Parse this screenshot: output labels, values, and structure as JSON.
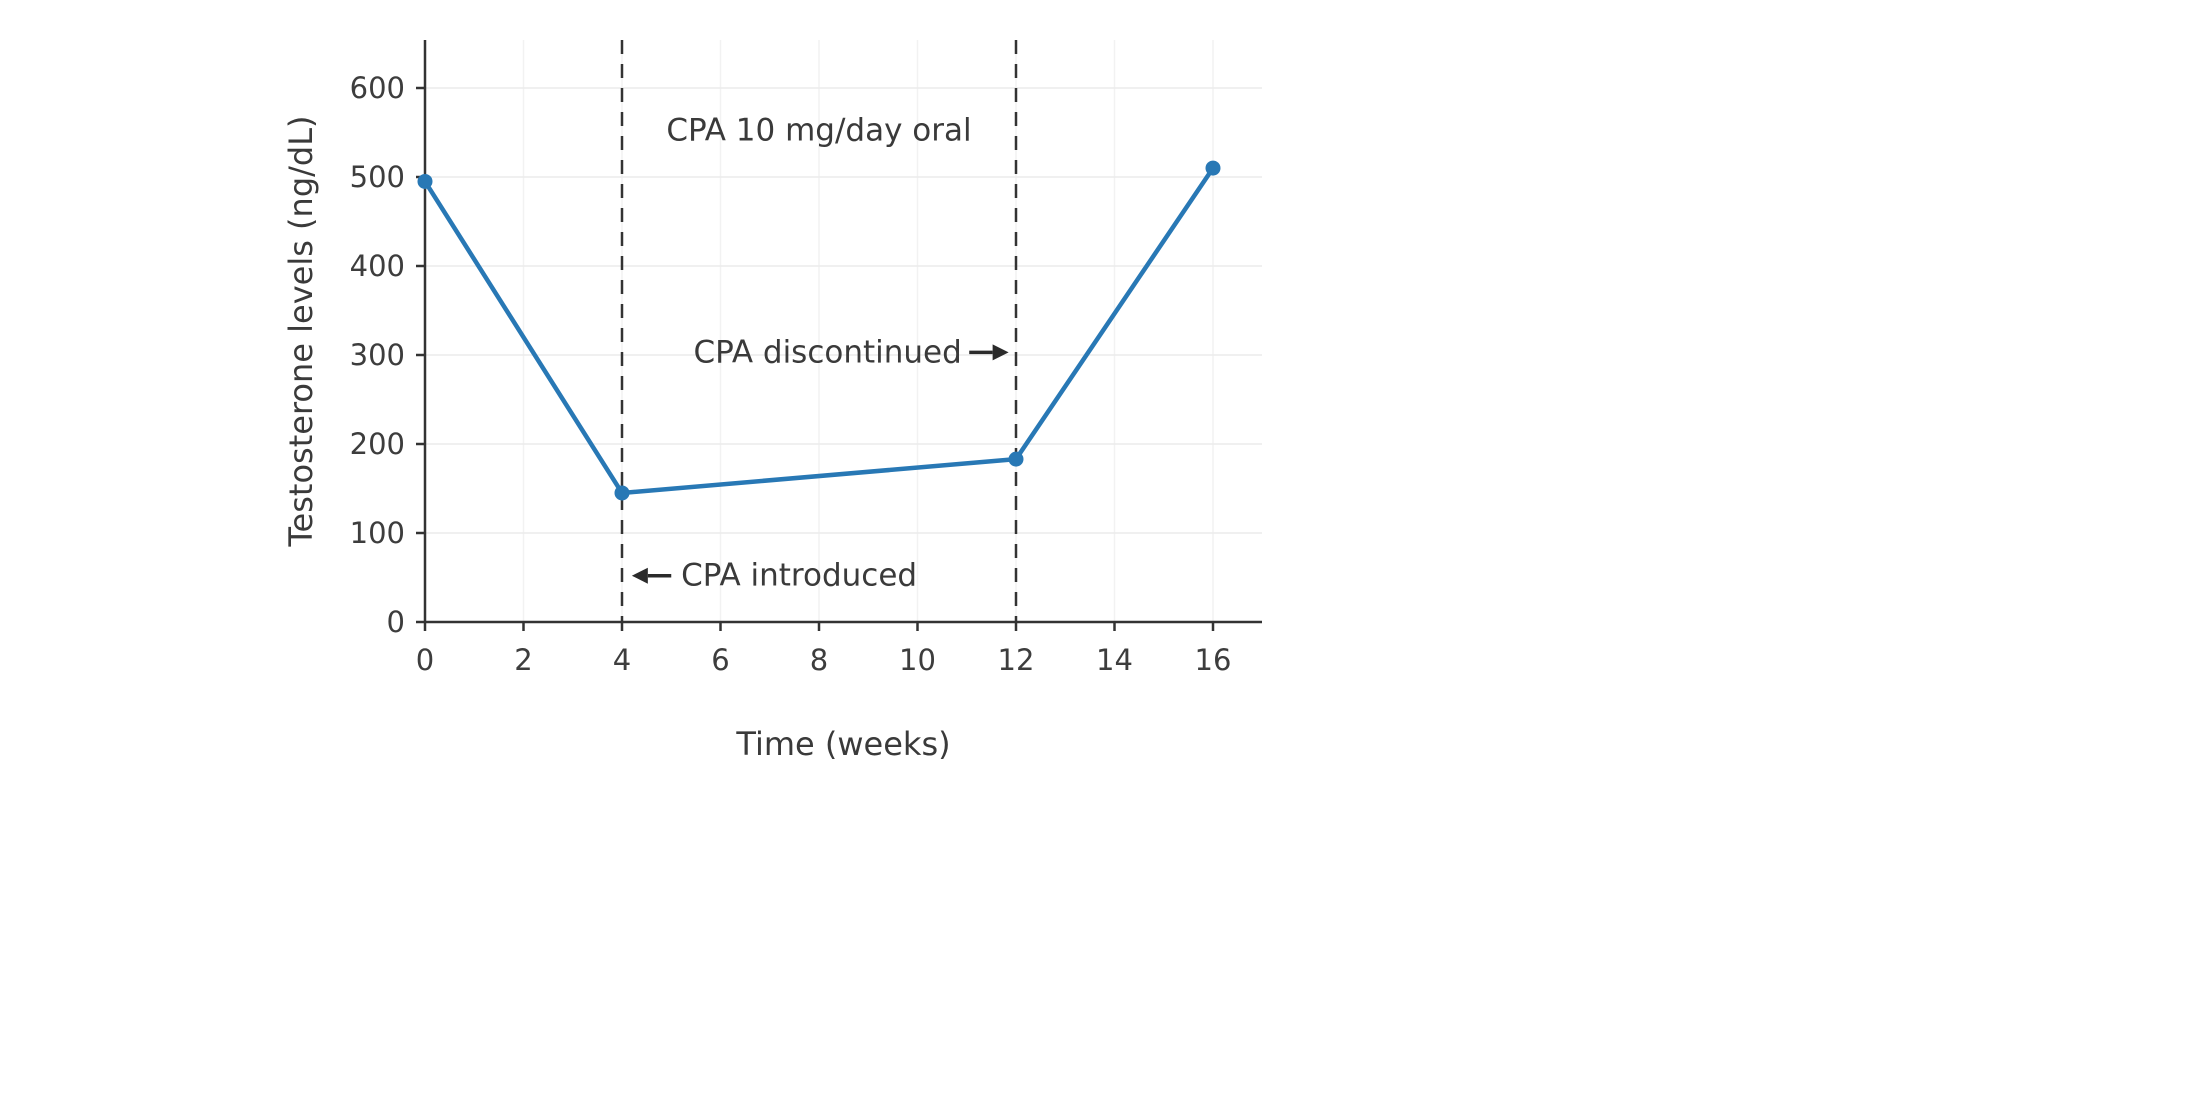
{
  "chart_data": {
    "type": "line",
    "title": "",
    "xlabel": "Time (weeks)",
    "ylabel": "Testosterone levels (ng/dL)",
    "x": [
      0,
      4,
      12,
      16
    ],
    "y": [
      495,
      145,
      183,
      510
    ],
    "series_name": "Testosterone",
    "xticks": [
      0,
      2,
      4,
      6,
      8,
      10,
      12,
      14,
      16
    ],
    "yticks": [
      0,
      100,
      200,
      300,
      400,
      500,
      600
    ],
    "xlim": [
      0,
      17
    ],
    "ylim": [
      0,
      650
    ],
    "grid": true,
    "legend": "none",
    "vlines": [
      {
        "x": 4,
        "style": "dashed"
      },
      {
        "x": 12,
        "style": "dashed"
      }
    ],
    "annotations": [
      {
        "id": "cpa-dose-label",
        "text": "CPA 10 mg/day oral",
        "x": 8,
        "y": 552,
        "align": "middle",
        "arrow": null
      },
      {
        "id": "cpa-introduced-label",
        "text": "CPA introduced",
        "x": 5.2,
        "y": 52,
        "align": "start",
        "arrow": {
          "dir": "left",
          "tip_x": 4.2,
          "tail_x": 5.0,
          "y": 52
        }
      },
      {
        "id": "cpa-discontinued-label",
        "text": "CPA discontinued",
        "x": 10.9,
        "y": 303,
        "align": "end",
        "arrow": {
          "dir": "right",
          "tip_x": 11.85,
          "tail_x": 11.05,
          "y": 303
        }
      }
    ],
    "colors": {
      "line": "#2878b5",
      "marker": "#2878b5",
      "axis": "#333333",
      "tick_text": "#3d3d3d",
      "grid_h": "#ebebeb",
      "grid_v": "#f2f2f2",
      "dash_line": "#333333",
      "annotation_text": "#3a3a3a",
      "arrow": "#2b2b2b",
      "background": "#ffffff"
    }
  }
}
